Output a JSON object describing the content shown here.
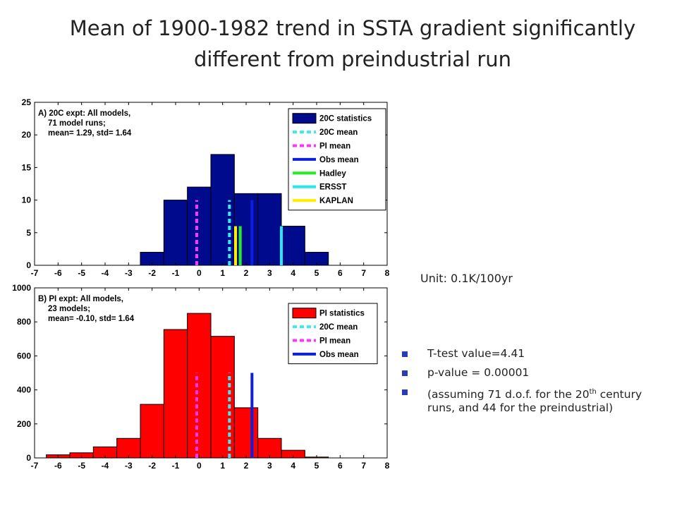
{
  "slide": {
    "title_line1": "Mean of 1900-1982 trend in SSTA gradient significantly",
    "title_line2": "different from preindustrial run",
    "unit": "Unit: 0.1K/100yr",
    "bullets": {
      "b1": "T-test value=4.41",
      "b2": "p-value = 0.00001",
      "b3_pre": "(assuming 71 d.o.f. for the 20",
      "b3_sup": "th",
      "b3_post": " century runs, and 44 for the preindustrial)"
    },
    "bullet_color": "#2a3cb5"
  },
  "chart_data": [
    {
      "type": "bar",
      "panel": "A",
      "annotation": [
        "A) 20C expt: All models,",
        "71 model runs;",
        "mean= 1.29, std= 1.64"
      ],
      "xlim": [
        -7,
        8
      ],
      "ylim": [
        0,
        25
      ],
      "xticks": [
        -7,
        -6,
        -5,
        -4,
        -3,
        -2,
        -1,
        0,
        1,
        2,
        3,
        4,
        5,
        6,
        7,
        8
      ],
      "yticks": [
        0,
        5,
        10,
        15,
        20,
        25
      ],
      "bins": [
        -2.5,
        -1.5,
        -0.5,
        0.5,
        1.5,
        2.5,
        3.5,
        4.5,
        5.5
      ],
      "counts": [
        2,
        10,
        12,
        17,
        11,
        11,
        6,
        2
      ],
      "bar_color": "#000a8c",
      "lines": [
        {
          "name": "20C mean",
          "x": 1.29,
          "y_top": 10,
          "color": "#3ee8f0",
          "dashed": true
        },
        {
          "name": "PI mean",
          "x": -0.1,
          "y_top": 10,
          "color": "#ff33ff",
          "dashed": true
        },
        {
          "name": "Obs mean",
          "x": 2.25,
          "y_top": 10,
          "color": "#0a1fe0",
          "dashed": false
        },
        {
          "name": "Hadley",
          "x": 1.75,
          "y_top": 6,
          "color": "#22ee22",
          "dashed": false
        },
        {
          "name": "ERSST",
          "x": 3.5,
          "y_top": 6,
          "color": "#28e8f0",
          "dashed": false
        },
        {
          "name": "KAPLAN",
          "x": 1.55,
          "y_top": 6,
          "color": "#ffee00",
          "dashed": false
        }
      ],
      "legend": {
        "position": "top-right",
        "entries": [
          {
            "label": "20C statistics",
            "kind": "patch",
            "color": "#000a8c"
          },
          {
            "label": "20C mean",
            "kind": "line",
            "color": "#3ee8f0",
            "dashed": true
          },
          {
            "label": "PI mean",
            "kind": "line",
            "color": "#ff33ff",
            "dashed": true
          },
          {
            "label": "Obs mean",
            "kind": "line",
            "color": "#0a1fe0",
            "dashed": false
          },
          {
            "label": "Hadley",
            "kind": "line",
            "color": "#22ee22",
            "dashed": false
          },
          {
            "label": "ERSST",
            "kind": "line",
            "color": "#28e8f0",
            "dashed": false
          },
          {
            "label": "KAPLAN",
            "kind": "line",
            "color": "#ffee00",
            "dashed": false
          }
        ]
      }
    },
    {
      "type": "bar",
      "panel": "B",
      "annotation": [
        "B) PI expt: All models,",
        "23 models;",
        "mean= -0.10, std= 1.64"
      ],
      "xlim": [
        -7,
        8
      ],
      "ylim": [
        0,
        1000
      ],
      "xticks": [
        -7,
        -6,
        -5,
        -4,
        -3,
        -2,
        -1,
        0,
        1,
        2,
        3,
        4,
        5,
        6,
        7,
        8
      ],
      "yticks": [
        0,
        200,
        400,
        600,
        800,
        1000
      ],
      "bins": [
        -6.5,
        -5.5,
        -4.5,
        -3.5,
        -2.5,
        -1.5,
        -0.5,
        0.5,
        1.5,
        2.5,
        3.5,
        4.5,
        5.5
      ],
      "counts": [
        18,
        30,
        65,
        115,
        315,
        755,
        850,
        715,
        295,
        115,
        45,
        5
      ],
      "bar_color": "#ff0000",
      "lines": [
        {
          "name": "20C mean",
          "x": 1.29,
          "y_top": 500,
          "color": "#3ee8f0",
          "dashed": true
        },
        {
          "name": "PI mean",
          "x": -0.1,
          "y_top": 500,
          "color": "#ff33ff",
          "dashed": true
        },
        {
          "name": "Obs mean",
          "x": 2.25,
          "y_top": 500,
          "color": "#0a1fe0",
          "dashed": false
        }
      ],
      "legend": {
        "position": "top-right",
        "entries": [
          {
            "label": "PI statistics",
            "kind": "patch",
            "color": "#ff0000"
          },
          {
            "label": "20C mean",
            "kind": "line",
            "color": "#3ee8f0",
            "dashed": true
          },
          {
            "label": "PI mean",
            "kind": "line",
            "color": "#ff33ff",
            "dashed": true
          },
          {
            "label": "Obs mean",
            "kind": "line",
            "color": "#0a1fe0",
            "dashed": false
          }
        ]
      }
    }
  ]
}
